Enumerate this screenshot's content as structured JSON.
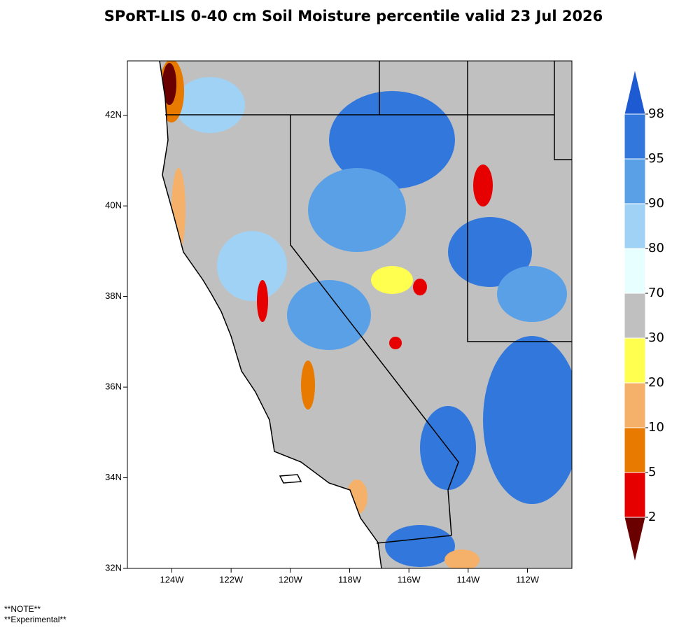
{
  "title": "SPoRT-LIS 0-40 cm Soil Moisture percentile valid 23 Jul 2026",
  "map": {
    "xlim": [
      -125.5,
      -110.5
    ],
    "ylim": [
      32,
      43.2
    ],
    "xticks": [
      {
        "value": -124,
        "label": "124W"
      },
      {
        "value": -122,
        "label": "122W"
      },
      {
        "value": -120,
        "label": "120W"
      },
      {
        "value": -118,
        "label": "118W"
      },
      {
        "value": -116,
        "label": "116W"
      },
      {
        "value": -114,
        "label": "114W"
      },
      {
        "value": -112,
        "label": "112W"
      }
    ],
    "yticks": [
      {
        "value": 32,
        "label": "32N"
      },
      {
        "value": 34,
        "label": "34N"
      },
      {
        "value": 36,
        "label": "36N"
      },
      {
        "value": 38,
        "label": "38N"
      },
      {
        "value": 40,
        "label": "40N"
      },
      {
        "value": 42,
        "label": "42N"
      }
    ]
  },
  "colorbar": {
    "levels": [
      2,
      5,
      10,
      20,
      30,
      70,
      80,
      90,
      95,
      98
    ],
    "colors": [
      "#6b0000",
      "#e60000",
      "#e87a00",
      "#f5b06a",
      "#ffff50",
      "#c0c0c0",
      "#e8ffff",
      "#a0d2f5",
      "#5aa0e6",
      "#3278dc",
      "#1e5ad2"
    ]
  },
  "notes": [
    "**NOTE**",
    "**Experimental**"
  ]
}
